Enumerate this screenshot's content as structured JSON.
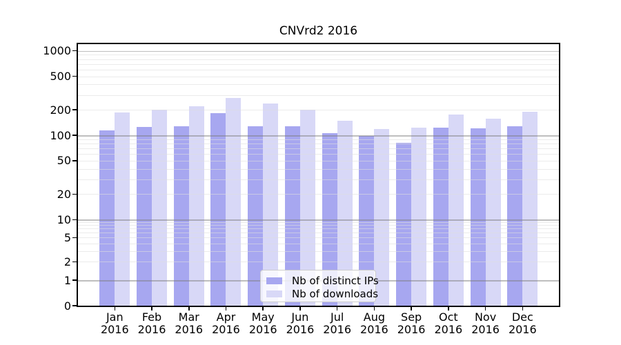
{
  "chart_data": {
    "type": "bar",
    "title": "CNVrd2 2016",
    "categories": [
      "Jan",
      "Feb",
      "Mar",
      "Apr",
      "May",
      "Jun",
      "Jul",
      "Aug",
      "Sep",
      "Oct",
      "Nov",
      "Dec"
    ],
    "category_year": "2016",
    "series": [
      {
        "name": "Nb of distinct IPs",
        "color": "#a7a7f0",
        "values": [
          115,
          125,
          128,
          183,
          128,
          127,
          105,
          99,
          82,
          123,
          120,
          127
        ]
      },
      {
        "name": "Nb of downloads",
        "color": "#d8d8f7",
        "values": [
          186,
          201,
          220,
          274,
          240,
          202,
          148,
          119,
          122,
          176,
          156,
          188
        ]
      }
    ],
    "y_ticks": [
      0,
      1,
      2,
      5,
      10,
      20,
      50,
      100,
      200,
      500,
      1000
    ],
    "y_scale": "log above 10, compressed log 1-10, linear 0-1",
    "ylim": [
      0,
      1200
    ],
    "grid": "on",
    "grid_major_color": "#b3b3b3",
    "grid_minor_color": "#e9e9e9",
    "legend_position": "inside bottom-center",
    "xlabel": "",
    "ylabel": ""
  }
}
